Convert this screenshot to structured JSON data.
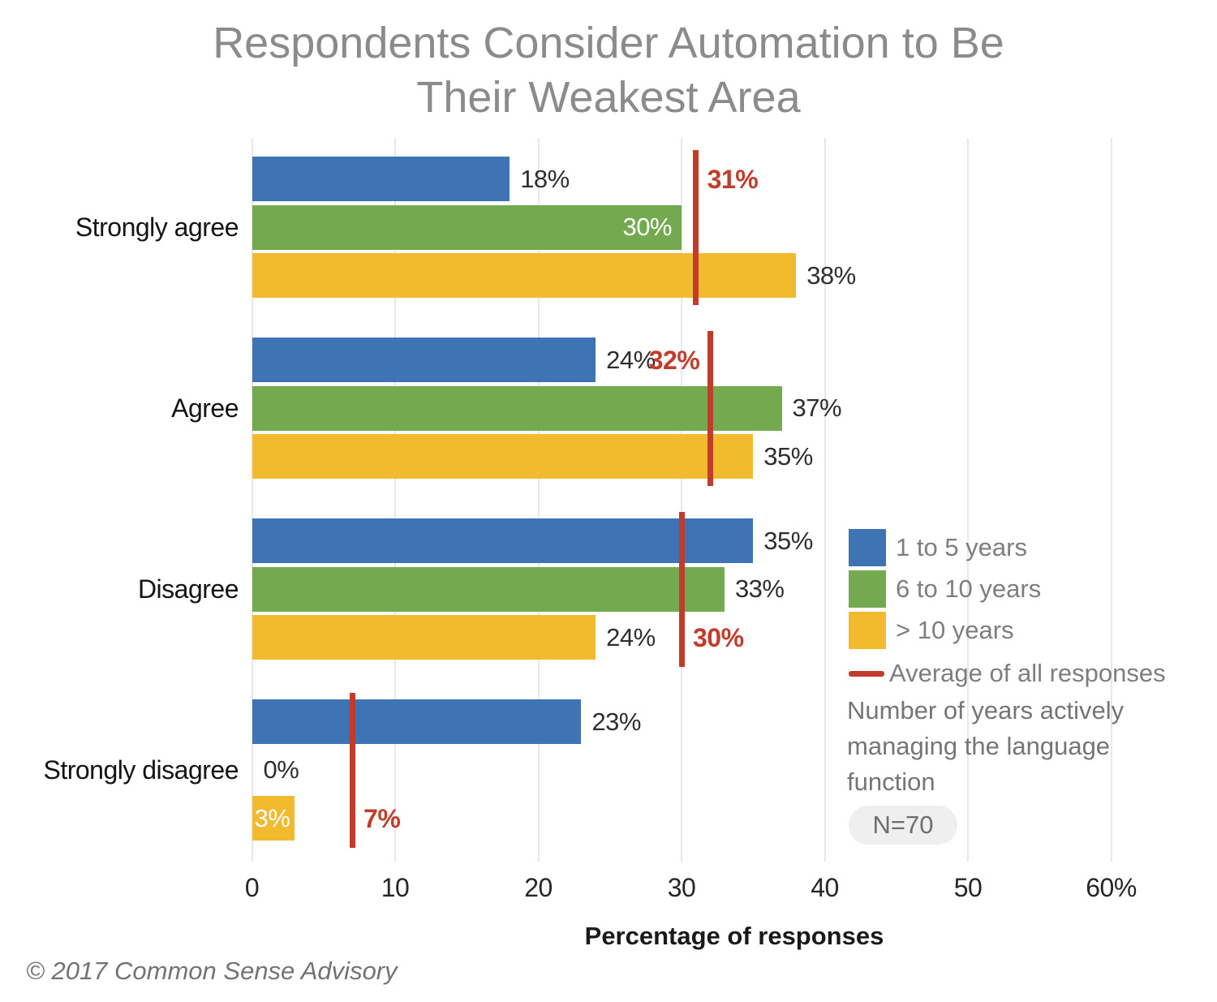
{
  "title": {
    "line1": "Respondents Consider Automation to Be",
    "line2": "Their Weakest Area"
  },
  "chart_data": {
    "type": "bar",
    "orientation": "horizontal",
    "title": "Respondents Consider Automation to Be Their Weakest Area",
    "categories": [
      "Strongly agree",
      "Agree",
      "Disagree",
      "Strongly disagree"
    ],
    "series": [
      {
        "name": "1 to 5 years",
        "color": "#3E74B4",
        "values": [
          18,
          24,
          35,
          23
        ],
        "labels": [
          "18%",
          "24%",
          "35%",
          "23%"
        ],
        "label_inside": [
          false,
          false,
          false,
          false
        ]
      },
      {
        "name": "6 to 10 years",
        "color": "#73A94F",
        "values": [
          30,
          37,
          33,
          0
        ],
        "labels": [
          "30%",
          "37%",
          "33%",
          "0%"
        ],
        "label_inside": [
          true,
          false,
          false,
          false
        ]
      },
      {
        "name": "> 10 years",
        "color": "#F2BA2F",
        "values": [
          38,
          35,
          24,
          3
        ],
        "labels": [
          "38%",
          "35%",
          "24%",
          "3%"
        ],
        "label_inside": [
          false,
          false,
          false,
          true
        ]
      }
    ],
    "average": {
      "name": "Average of all responses",
      "color": "#C23C2B",
      "values": [
        31,
        32,
        30,
        7
      ],
      "labels": [
        "31%",
        "32%",
        "30%",
        "7%"
      ],
      "label_side": [
        "right",
        "left",
        "right",
        "right"
      ],
      "label_row": [
        0,
        0,
        2,
        2
      ]
    },
    "xlabel": "Percentage of responses",
    "x_ticks": {
      "values": [
        0,
        10,
        20,
        30,
        40,
        50,
        60
      ],
      "labels": [
        "0",
        "10",
        "20",
        "30",
        "40",
        "50",
        "60%"
      ]
    },
    "xlim": [
      0,
      60
    ],
    "grid": true,
    "legend_position": "right-middle"
  },
  "legend": {
    "note": "Number of years actively managing the language function",
    "sample_label": "N=70"
  },
  "footer": "© 2017 Common Sense Advisory",
  "colors": {
    "background": "#FFFFFF",
    "grid": "#E8E8E8",
    "title_text": "#8B8B8B",
    "legend_text": "#7E7E7E",
    "note_text": "#757575",
    "value_text": "#2E2E2E",
    "category_text": "#141414",
    "tick_text": "#262626",
    "axis_label_text": "#1A1A1A",
    "pill_bg": "#EFEFEF",
    "pill_text": "#6E6E6E",
    "footer_text": "#737373"
  }
}
